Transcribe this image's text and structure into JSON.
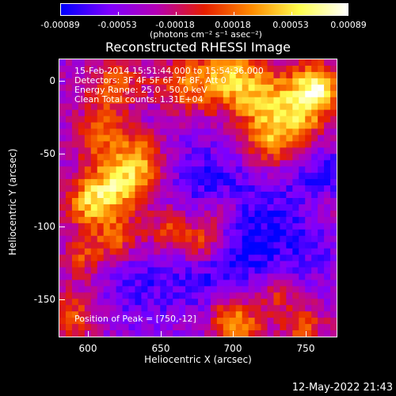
{
  "colorbar": {
    "tick_labels": [
      "-0.00089",
      "-0.00053",
      "-0.00018",
      "0.00018",
      "0.00053",
      "0.00089"
    ],
    "units": "(photons cm⁻² s⁻¹ asec⁻²)",
    "range": [
      -0.00089,
      0.00089
    ],
    "colors": [
      "#0000ff",
      "#7d00ff",
      "#b400b4",
      "#e61e00",
      "#ff8c00",
      "#ffff50",
      "#ffffff"
    ]
  },
  "plot": {
    "title": "Reconstructed RHESSI Image",
    "info_lines": [
      "15-Feb-2014 15:51:44.000 to 15:54:36.000",
      "Detectors: 3F 4F 5F 6F 7F 8F, Att 0",
      "Energy Range: 25.0 - 50.0 keV",
      "Clean     Total counts: 1.31E+04"
    ],
    "peak_position": "Position of Peak = [750,-12]",
    "xlabel": "Heliocentric X (arcsec)",
    "ylabel": "Heliocentric Y (arcsec)",
    "x_ticks": [
      "600",
      "650",
      "700",
      "750"
    ],
    "y_ticks": [
      "0",
      "-50",
      "-100",
      "-150"
    ],
    "xlim": [
      580,
      770
    ],
    "ylim": [
      -175,
      15
    ]
  },
  "footer": {
    "timestamp": "12-May-2022 21:43"
  }
}
